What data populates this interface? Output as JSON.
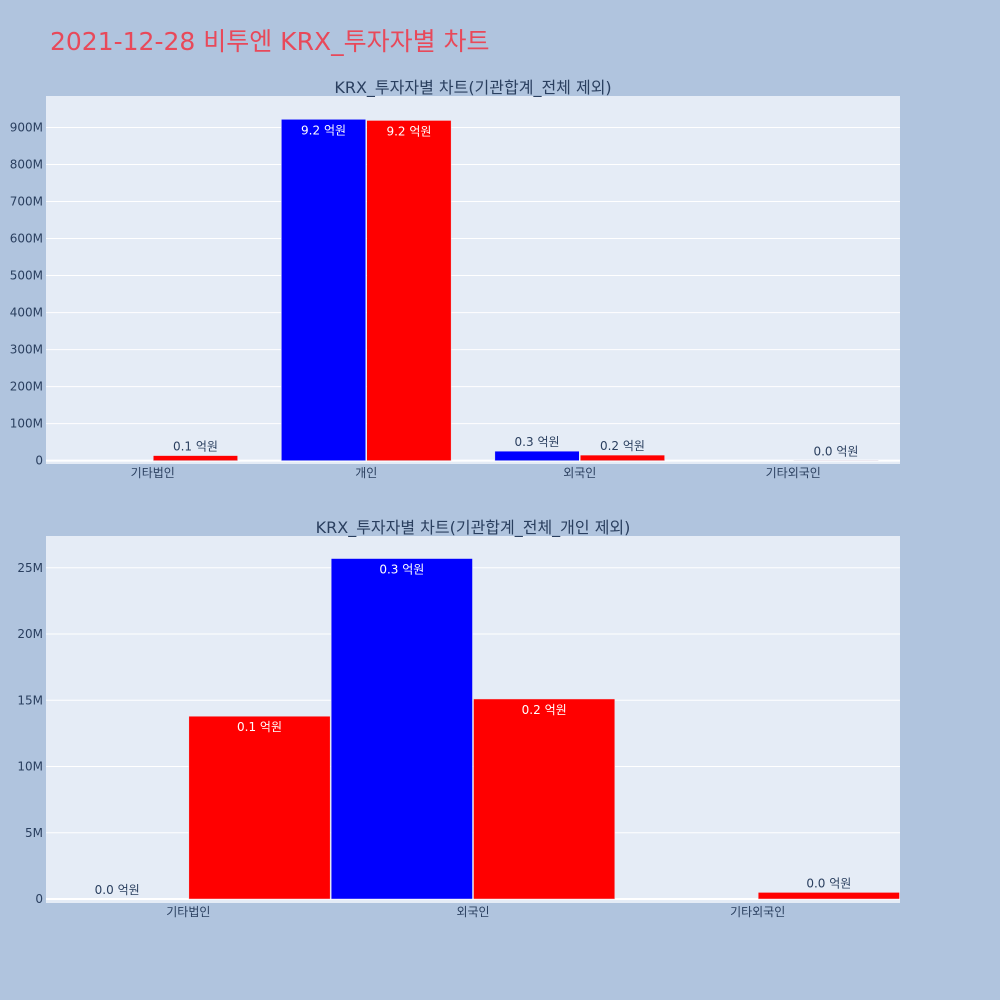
{
  "page": {
    "title": "2021-12-28 비투엔 KRX_투자자별 차트"
  },
  "colors": {
    "series_a": "#0000ff",
    "series_b": "#ff0000",
    "background": "#b0c4de",
    "plot": "#e5ecf6",
    "title": "#e8495a"
  },
  "chart_data": [
    {
      "type": "bar",
      "title": "KRX_투자자별 차트(기관합계_전체 제외)",
      "categories": [
        "기타법인",
        "개인",
        "외국인",
        "기타외국인"
      ],
      "series": [
        {
          "color": "#0000ff",
          "values": [
            0,
            922000000,
            25700000,
            0
          ],
          "labels": [
            "",
            "9.2 억원",
            "0.3 억원",
            ""
          ]
        },
        {
          "color": "#ff0000",
          "values": [
            13800000,
            919000000,
            15100000,
            500000
          ],
          "labels": [
            "0.1 억원",
            "9.2 억원",
            "0.2 억원",
            "0.0 억원"
          ]
        }
      ],
      "yticks": [
        "0",
        "100M",
        "200M",
        "300M",
        "400M",
        "500M",
        "600M",
        "700M",
        "800M",
        "900M"
      ],
      "ytick_values": [
        0,
        100000000,
        200000000,
        300000000,
        400000000,
        500000000,
        600000000,
        700000000,
        800000000,
        900000000
      ],
      "ylim": [
        -9000000,
        985000000
      ],
      "grid": true,
      "legend": "none"
    },
    {
      "type": "bar",
      "title": "KRX_투자자별 차트(기관합계_전체_개인 제외)",
      "categories": [
        "기타법인",
        "외국인",
        "기타외국인"
      ],
      "series": [
        {
          "color": "#0000ff",
          "values": [
            0,
            25700000,
            0
          ],
          "labels": [
            "0.0 억원",
            "0.3 억원",
            ""
          ]
        },
        {
          "color": "#ff0000",
          "values": [
            13800000,
            15100000,
            500000
          ],
          "labels": [
            "0.1 억원",
            "0.2 억원",
            "0.0 억원"
          ]
        }
      ],
      "yticks": [
        "0",
        "5M",
        "10M",
        "15M",
        "20M",
        "25M"
      ],
      "ytick_values": [
        0,
        5000000,
        10000000,
        15000000,
        20000000,
        25000000
      ],
      "ylim": [
        -300000,
        27400000
      ],
      "grid": true,
      "legend": "none"
    }
  ]
}
